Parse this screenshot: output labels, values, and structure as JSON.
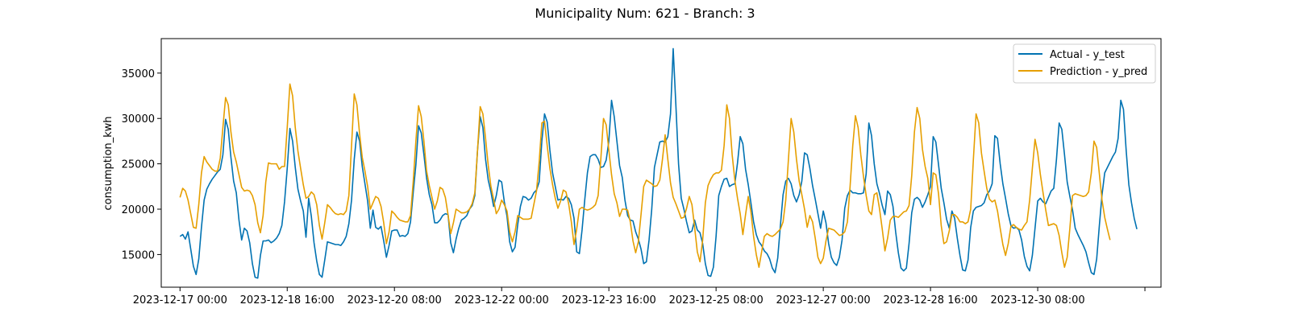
{
  "figure": {
    "suptitle": "Municipality Num: 621 - Branch: 3"
  },
  "chart_data": {
    "type": "line",
    "title": "Municipality Num: 621 - Branch: 3",
    "xlabel": "",
    "ylabel": "consumption_kwh",
    "x_start": "2023-12-17 00:00",
    "x_step_hours": 1,
    "xlim": [
      "2023-12-16 17:00",
      "2024-01-01 06:00"
    ],
    "ylim": [
      11400,
      38800
    ],
    "yticks": [
      15000,
      20000,
      25000,
      30000,
      35000
    ],
    "ytick_labels": [
      "15000",
      "20000",
      "25000",
      "30000",
      "35000"
    ],
    "xticks": [
      "2023-12-17 00:00",
      "2023-12-18 16:00",
      "2023-12-20 08:00",
      "2023-12-22 00:00",
      "2023-12-23 16:00",
      "2023-12-25 08:00",
      "2023-12-27 00:00",
      "2023-12-28 16:00",
      "2023-12-30 08:00",
      "2024-01-01 00:00"
    ],
    "xtick_labels": [
      "2023-12-17 00:00",
      "2023-12-18 16:00",
      "2023-12-20 08:00",
      "2023-12-22 00:00",
      "2023-12-23 16:00",
      "2023-12-25 08:00",
      "2023-12-27 00:00",
      "2023-12-28 16:00",
      "2023-12-30 08:00",
      ""
    ],
    "grid": false,
    "legend": "upper right",
    "series": [
      {
        "name": "Actual - y_test",
        "color": "#0072B2",
        "values": [
          17000,
          17200,
          16700,
          17500,
          15600,
          13700,
          12800,
          14500,
          18000,
          21000,
          22200,
          22800,
          23300,
          23700,
          24100,
          24400,
          26000,
          29900,
          28800,
          25700,
          23100,
          21800,
          18800,
          16600,
          17900,
          17600,
          16300,
          14000,
          12500,
          12400,
          14900,
          16500,
          16500,
          16600,
          16300,
          16500,
          16800,
          17300,
          18200,
          20800,
          24500,
          28900,
          27500,
          24600,
          22200,
          20900,
          19800,
          16900,
          21200,
          19200,
          16300,
          14300,
          12800,
          12500,
          14400,
          16400,
          16300,
          16200,
          16100,
          16100,
          16000,
          16400,
          17000,
          18400,
          21000,
          25500,
          28500,
          27500,
          24700,
          22800,
          20900,
          17900,
          19900,
          18000,
          17800,
          18100,
          16500,
          14700,
          16000,
          17600,
          17700,
          17700,
          17000,
          17100,
          17000,
          17300,
          18600,
          21800,
          24900,
          29200,
          28400,
          26000,
          23400,
          21600,
          20500,
          18500,
          18500,
          18800,
          19300,
          19500,
          19400,
          16300,
          15200,
          16700,
          17900,
          18800,
          19000,
          19300,
          20000,
          20400,
          21500,
          26500,
          30200,
          29000,
          25500,
          23200,
          21900,
          20300,
          21500,
          23200,
          23000,
          20800,
          19200,
          16400,
          15300,
          15800,
          18300,
          20300,
          21400,
          21300,
          21000,
          21200,
          21800,
          22100,
          23000,
          27500,
          30500,
          29600,
          26500,
          24000,
          22500,
          21000,
          21100,
          21000,
          21400,
          21200,
          20500,
          19000,
          15300,
          15100,
          17700,
          21000,
          24000,
          25800,
          26000,
          26000,
          25500,
          24600,
          24700,
          25400,
          27500,
          32000,
          30200,
          27500,
          24800,
          23500,
          21000,
          19300,
          18800,
          18700,
          17500,
          16700,
          15600,
          14000,
          14200,
          16600,
          20000,
          24600,
          26000,
          27400,
          27500,
          27400,
          28000,
          30500,
          37700,
          31500,
          25000,
          21200,
          20000,
          18600,
          17400,
          17600,
          18800,
          17700,
          17400,
          16200,
          14000,
          12700,
          12600,
          13600,
          17000,
          21500,
          22500,
          23300,
          23400,
          22500,
          22700,
          22800,
          25100,
          28000,
          27200,
          24400,
          22700,
          20700,
          18600,
          17200,
          16400,
          16000,
          15400,
          15100,
          14500,
          13500,
          13000,
          14600,
          18200,
          21600,
          23100,
          23400,
          22800,
          21500,
          20800,
          21600,
          23100,
          26200,
          26000,
          24500,
          22600,
          21100,
          19500,
          17900,
          19800,
          18500,
          16200,
          14700,
          14100,
          13800,
          14700,
          16600,
          20100,
          21500,
          22100,
          21800,
          21800,
          21700,
          21700,
          21800,
          23900,
          29500,
          28100,
          25000,
          22800,
          21700,
          20400,
          19400,
          22000,
          21600,
          20300,
          17500,
          15200,
          13500,
          13200,
          13500,
          16200,
          19600,
          21100,
          21300,
          21000,
          20200,
          20800,
          21600,
          22500,
          28000,
          27400,
          24900,
          22300,
          20700,
          18900,
          17900,
          19800,
          19000,
          16800,
          14900,
          13300,
          13200,
          14400,
          18000,
          19800,
          20200,
          20300,
          20400,
          20700,
          21600,
          22000,
          22800,
          28100,
          27800,
          25000,
          22800,
          21200,
          19500,
          18200,
          17900,
          18000,
          17700,
          16600,
          14800,
          13700,
          13200,
          14900,
          17900,
          20900,
          21200,
          20800,
          20600,
          21300,
          22000,
          22300,
          25500,
          29500,
          28800,
          26000,
          23000,
          21400,
          19900,
          17900,
          17200,
          16600,
          16000,
          15300,
          14100,
          13000,
          12800,
          14500,
          18200,
          21600,
          24000,
          24600,
          25200,
          25800,
          26300,
          27800,
          32000,
          31000,
          26500,
          22700,
          20700,
          19000,
          17800
        ]
      },
      {
        "name": "Prediction - y_pred",
        "color": "#E69F00",
        "values": [
          21300,
          22300,
          22000,
          21000,
          19500,
          18000,
          17900,
          20500,
          24000,
          25800,
          25200,
          24800,
          24400,
          24200,
          24200,
          25600,
          29000,
          32300,
          31500,
          28500,
          26300,
          25200,
          23800,
          22400,
          22000,
          22100,
          22000,
          21500,
          20500,
          18500,
          17400,
          19300,
          23000,
          25100,
          25000,
          25000,
          25000,
          24400,
          24700,
          24700,
          29000,
          33800,
          32500,
          29000,
          26400,
          24500,
          22700,
          21200,
          21400,
          21900,
          21600,
          20500,
          18200,
          16700,
          18500,
          20500,
          20200,
          19800,
          19500,
          19400,
          19500,
          19400,
          19800,
          21500,
          27000,
          32700,
          31500,
          28300,
          25700,
          24200,
          22500,
          20000,
          20700,
          21400,
          21200,
          20300,
          18500,
          16200,
          17500,
          19800,
          19500,
          19100,
          18800,
          18700,
          18600,
          18600,
          19300,
          23000,
          27500,
          31400,
          30200,
          27500,
          24200,
          22600,
          21300,
          20000,
          20900,
          22400,
          22200,
          21300,
          19400,
          17300,
          18500,
          20000,
          19800,
          19600,
          19600,
          19700,
          20000,
          20600,
          21800,
          26500,
          31300,
          30500,
          27800,
          24800,
          22500,
          21100,
          19500,
          20000,
          21000,
          20500,
          19800,
          17500,
          16400,
          17500,
          19300,
          19100,
          18900,
          18900,
          18900,
          19000,
          20500,
          22000,
          25200,
          29500,
          29700,
          27000,
          24500,
          22700,
          21200,
          20100,
          20900,
          22100,
          21900,
          20600,
          18600,
          16100,
          17800,
          20000,
          20200,
          20000,
          19900,
          20000,
          20200,
          20500,
          21500,
          25500,
          30000,
          29300,
          26500,
          23800,
          21700,
          20700,
          19200,
          20000,
          20000,
          19900,
          18600,
          16500,
          15200,
          16400,
          19400,
          22500,
          23200,
          23000,
          22800,
          22500,
          22600,
          23200,
          25500,
          28200,
          25500,
          22900,
          21300,
          20600,
          19800,
          19000,
          19100,
          20100,
          21400,
          20500,
          18000,
          15300,
          14200,
          16600,
          20700,
          22600,
          23300,
          23800,
          24000,
          24000,
          24300,
          27000,
          31500,
          30000,
          26000,
          23200,
          21200,
          19500,
          17200,
          19400,
          21400,
          19700,
          17000,
          15000,
          13600,
          15300,
          17000,
          17300,
          17100,
          17000,
          17200,
          17500,
          17800,
          18600,
          21000,
          25500,
          30000,
          28500,
          25500,
          23100,
          21600,
          20000,
          18000,
          19300,
          18600,
          16800,
          14700,
          14000,
          14600,
          16500,
          17900,
          17800,
          17700,
          17400,
          17100,
          17200,
          17500,
          18600,
          22500,
          27000,
          30300,
          29000,
          26000,
          23600,
          21500,
          19800,
          19400,
          21600,
          21800,
          20000,
          17800,
          15400,
          16800,
          18800,
          19200,
          19200,
          19100,
          19400,
          19700,
          19800,
          20400,
          23700,
          28500,
          31200,
          30000,
          26600,
          24700,
          23400,
          20500,
          24000,
          23800,
          21700,
          18200,
          16200,
          16400,
          17600,
          19400,
          19400,
          19100,
          18600,
          18600,
          18400,
          18600,
          20000,
          25500,
          30500,
          29500,
          26200,
          24200,
          22300,
          21100,
          20800,
          21000,
          19800,
          17900,
          16100,
          14900,
          16200,
          18100,
          18300,
          18000,
          17800,
          17700,
          18200,
          18600,
          21000,
          24500,
          27700,
          26200,
          23800,
          21800,
          19900,
          18200,
          18300,
          18400,
          18200,
          17100,
          15200,
          13600,
          14700,
          17900,
          21500,
          21700,
          21600,
          21500,
          21400,
          21500,
          21900,
          24000,
          27500,
          26800,
          23900,
          21000,
          19100,
          17800,
          16600
        ]
      }
    ]
  }
}
